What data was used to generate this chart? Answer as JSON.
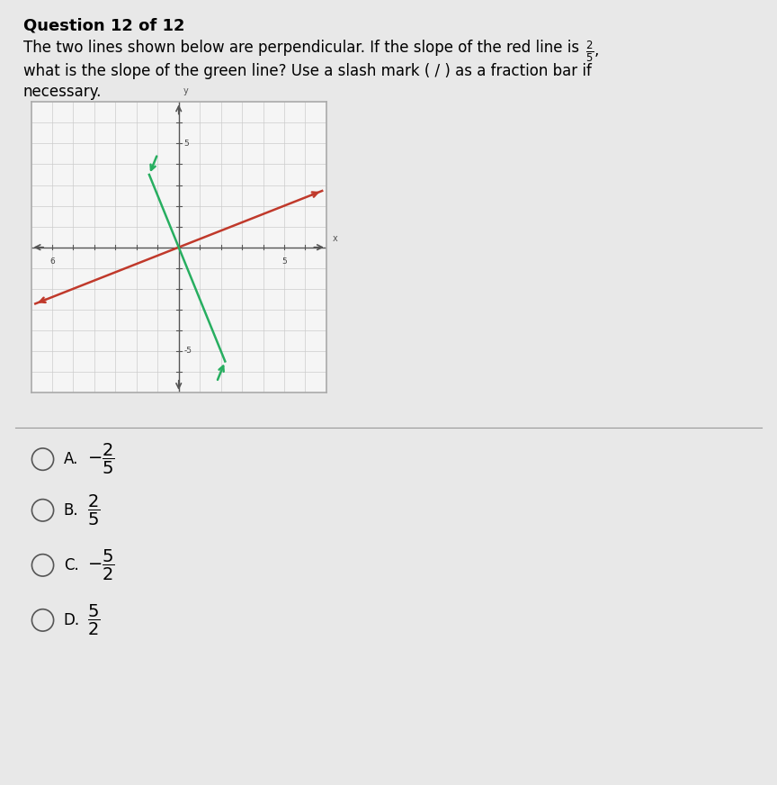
{
  "title": "Question 12 of 12",
  "line1": "The two lines shown below are perpendicular. If the slope of the red line is ",
  "frac_superscript": "2",
  "frac_subscript": "5",
  "line2": "what is the slope of the green line? Use a slash mark ( / ) as a fraction bar if",
  "line3": "necessary.",
  "page_bg": "#e8e8e8",
  "graph_bg": "#f5f5f5",
  "graph_border": "#aaaaaa",
  "red_color": "#c0392b",
  "green_color": "#27ae60",
  "axis_color": "#555555",
  "grid_color": "#cccccc",
  "red_slope": 0.4,
  "green_slope": -2.5,
  "choices": [
    {
      "label": "A.",
      "math": "-\\dfrac{2}{5}"
    },
    {
      "label": "B.",
      "math": "\\dfrac{2}{5}"
    },
    {
      "label": "C.",
      "math": "-\\dfrac{5}{2}"
    },
    {
      "label": "D.",
      "math": "\\dfrac{5}{2}"
    }
  ]
}
